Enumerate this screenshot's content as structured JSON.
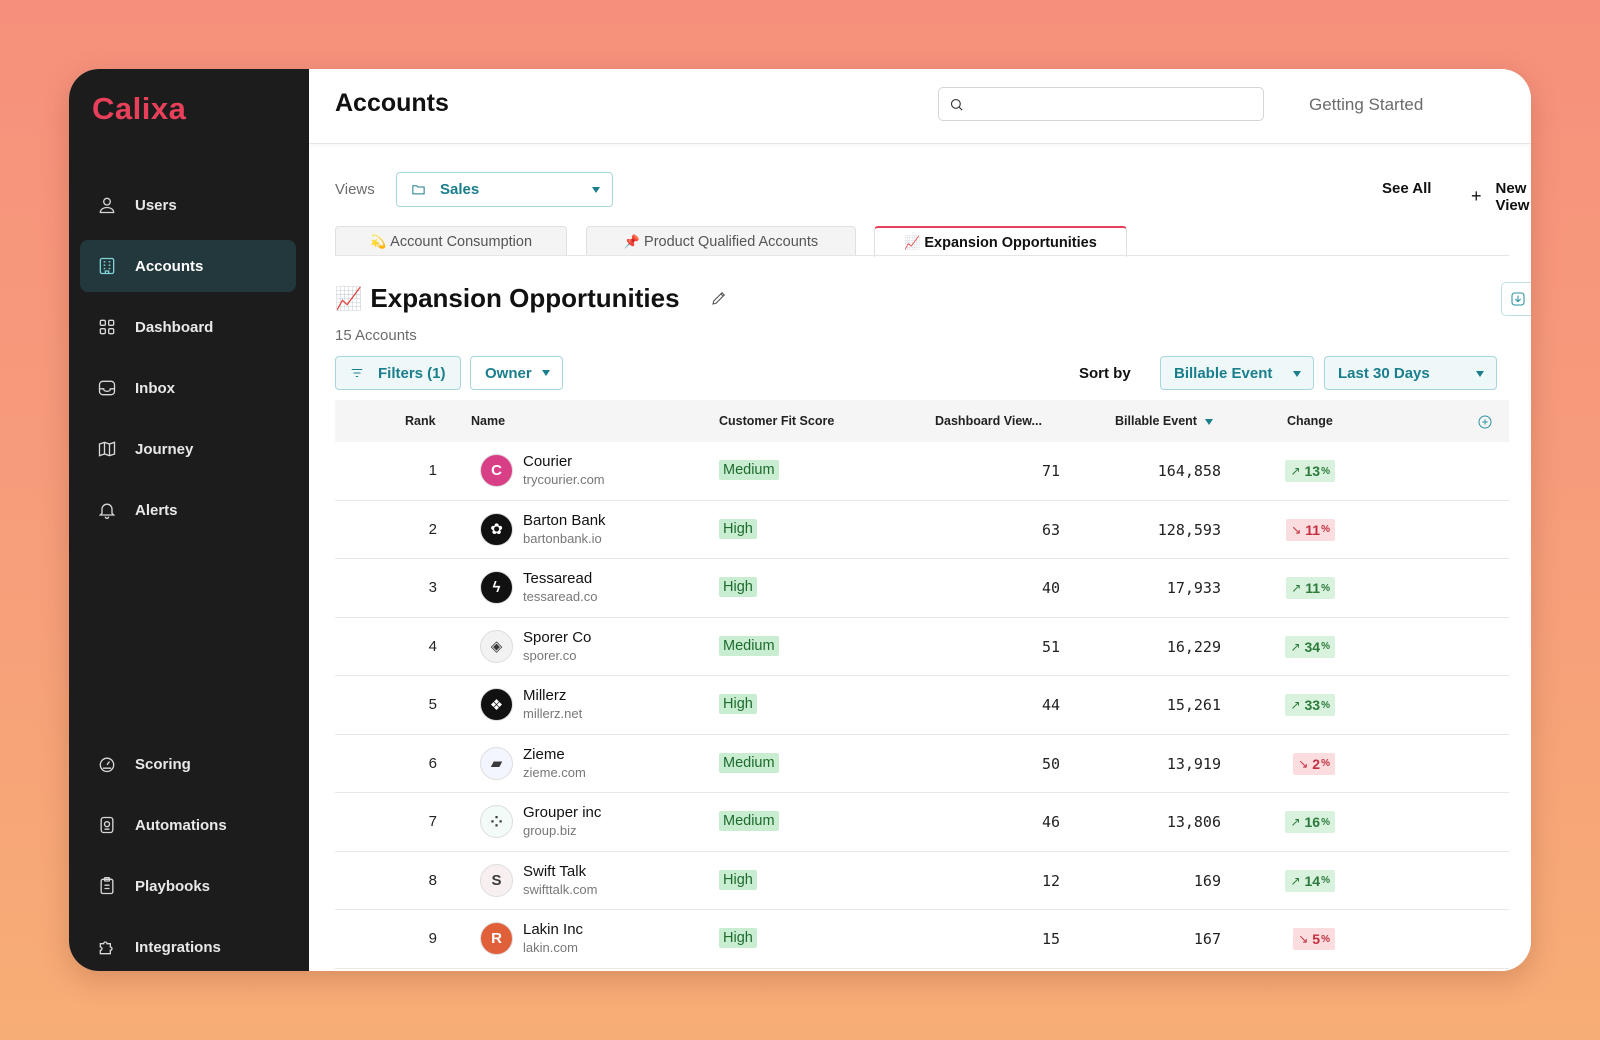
{
  "app": {
    "logo": "Calixa"
  },
  "sidebar": {
    "top_items": [
      {
        "label": "Users",
        "icon": "user-icon"
      },
      {
        "label": "Accounts",
        "icon": "building-icon",
        "active": true
      },
      {
        "label": "Dashboard",
        "icon": "grid-icon"
      },
      {
        "label": "Inbox",
        "icon": "inbox-icon"
      },
      {
        "label": "Journey",
        "icon": "map-icon"
      },
      {
        "label": "Alerts",
        "icon": "bell-icon"
      }
    ],
    "bottom_items": [
      {
        "label": "Scoring",
        "icon": "gauge-icon"
      },
      {
        "label": "Automations",
        "icon": "automation-icon"
      },
      {
        "label": "Playbooks",
        "icon": "clipboard-icon"
      },
      {
        "label": "Integrations",
        "icon": "puzzle-icon"
      }
    ]
  },
  "header": {
    "title": "Accounts",
    "search_placeholder": "",
    "getting_started": "Getting Started"
  },
  "views": {
    "label": "Views",
    "selected": "Sales",
    "see_all": "See All",
    "new_view": "New View"
  },
  "tabs": [
    {
      "emoji": "💫",
      "label": "Account Consumption"
    },
    {
      "emoji": "📌",
      "label": "Product Qualified Accounts"
    },
    {
      "emoji": "📈",
      "label": "Expansion Opportunities",
      "active": true
    }
  ],
  "section": {
    "emoji": "📈",
    "title": "Expansion Opportunities",
    "count": "15 Accounts"
  },
  "filters": {
    "filters_label": "Filters (1)",
    "owner_label": "Owner",
    "sort_label": "Sort by",
    "sort_field": "Billable Event",
    "sort_period": "Last 30 Days"
  },
  "table": {
    "columns": {
      "rank": "Rank",
      "name": "Name",
      "fit": "Customer Fit Score",
      "views": "Dashboard View...",
      "billable": "Billable Event",
      "change": "Change"
    },
    "rows": [
      {
        "rank": "1",
        "name": "Courier",
        "domain": "trycourier.com",
        "fit": "Medium",
        "views": "71",
        "billable": "164,858",
        "change": "13",
        "dir": "up",
        "logo_color": "#d93f86",
        "logo_char": "C"
      },
      {
        "rank": "2",
        "name": "Barton Bank",
        "domain": "bartonbank.io",
        "fit": "High",
        "views": "63",
        "billable": "128,593",
        "change": "11",
        "dir": "down",
        "logo_color": "#111111",
        "logo_char": "✿"
      },
      {
        "rank": "3",
        "name": "Tessaread",
        "domain": "tessaread.co",
        "fit": "High",
        "views": "40",
        "billable": "17,933",
        "change": "11",
        "dir": "up",
        "logo_color": "#111111",
        "logo_char": "ϟ"
      },
      {
        "rank": "4",
        "name": "Sporer Co",
        "domain": "sporer.co",
        "fit": "Medium",
        "views": "51",
        "billable": "16,229",
        "change": "34",
        "dir": "up",
        "logo_color": "#f2f2f2",
        "logo_char": "◈"
      },
      {
        "rank": "5",
        "name": "Millerz",
        "domain": "millerz.net",
        "fit": "High",
        "views": "44",
        "billable": "15,261",
        "change": "33",
        "dir": "up",
        "logo_color": "#111111",
        "logo_char": "❖"
      },
      {
        "rank": "6",
        "name": "Zieme",
        "domain": "zieme.com",
        "fit": "Medium",
        "views": "50",
        "billable": "13,919",
        "change": "2",
        "dir": "down",
        "logo_color": "#f4f6ff",
        "logo_char": "▰"
      },
      {
        "rank": "7",
        "name": "Grouper inc",
        "domain": "group.biz",
        "fit": "Medium",
        "views": "46",
        "billable": "13,806",
        "change": "16",
        "dir": "up",
        "logo_color": "#f2fbf8",
        "logo_char": "⁘"
      },
      {
        "rank": "8",
        "name": "Swift Talk",
        "domain": "swifttalk.com",
        "fit": "High",
        "views": "12",
        "billable": "169",
        "change": "14",
        "dir": "up",
        "logo_color": "#f8f0f0",
        "logo_char": "S"
      },
      {
        "rank": "9",
        "name": "Lakin Inc",
        "domain": "lakin.com",
        "fit": "High",
        "views": "15",
        "billable": "167",
        "change": "5",
        "dir": "down",
        "logo_color": "#e0603a",
        "logo_char": "R"
      }
    ]
  }
}
